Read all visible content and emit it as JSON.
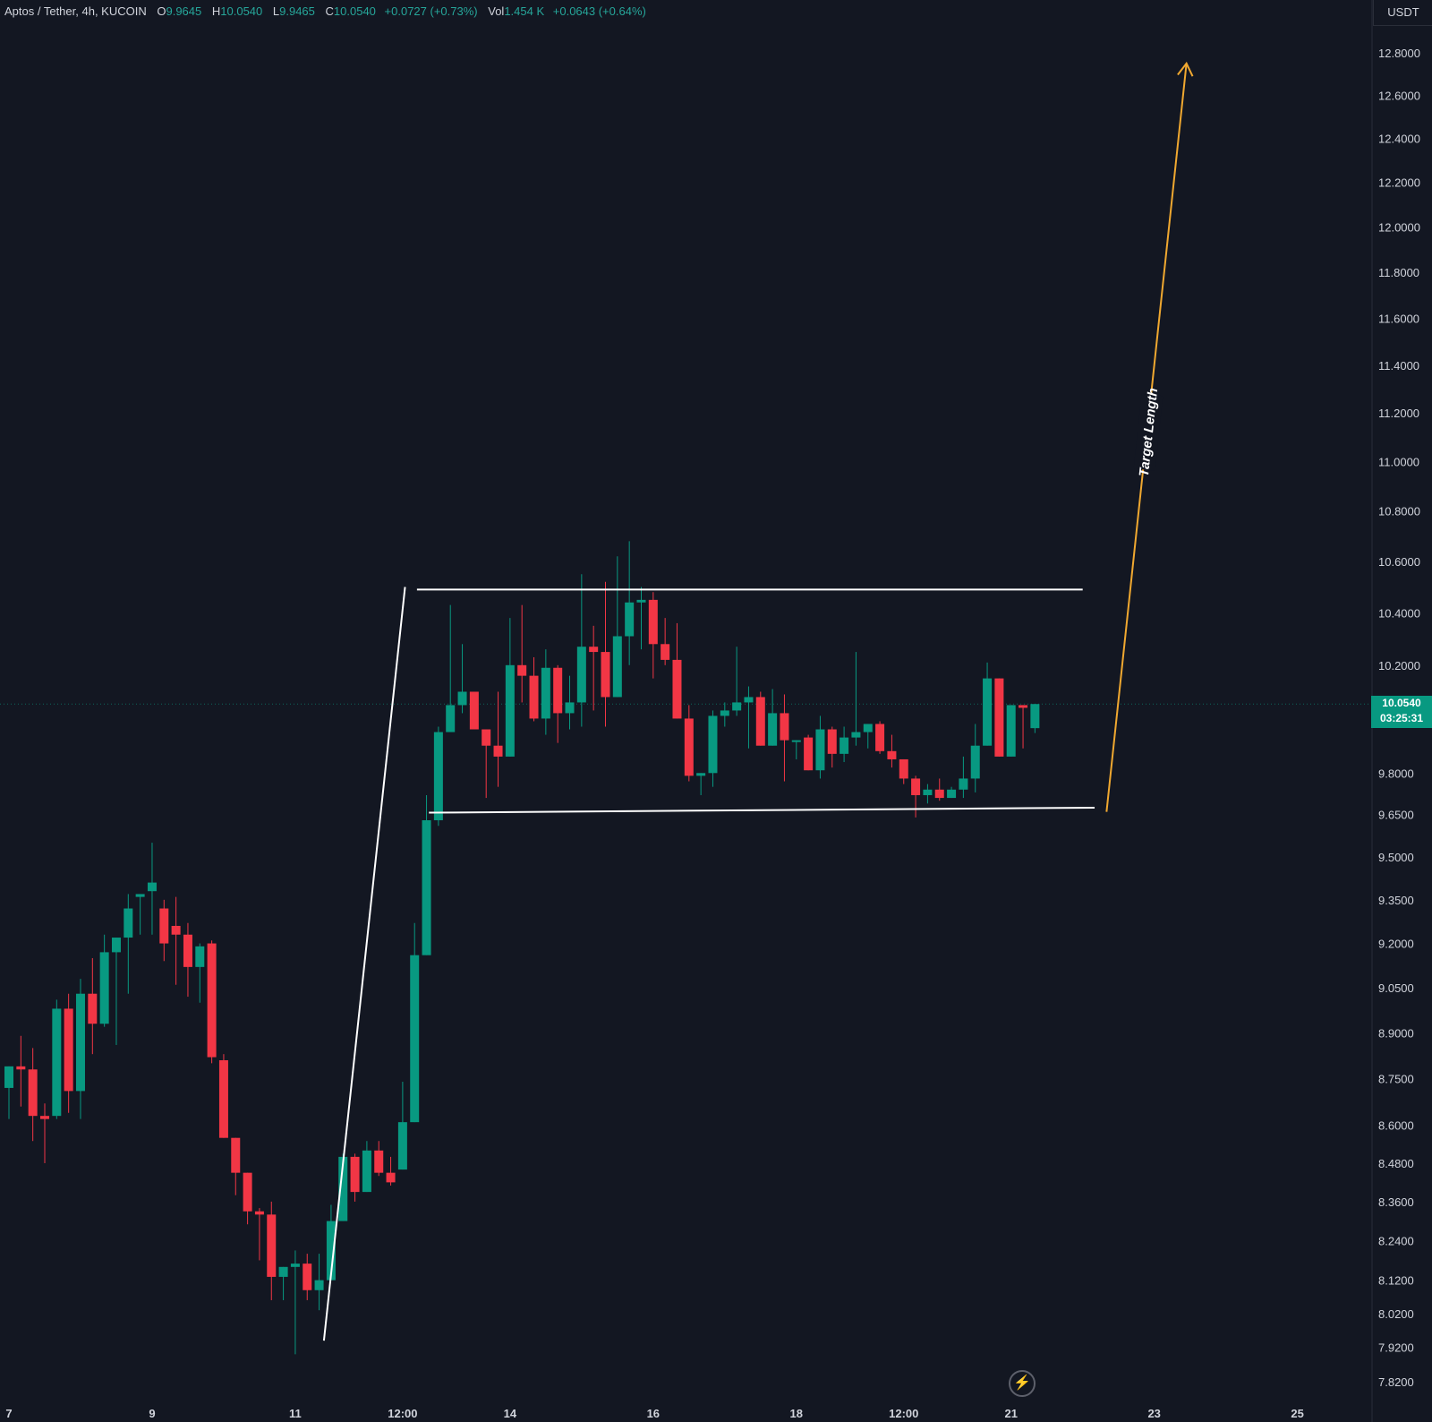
{
  "header": {
    "symbol": "Aptos / Tether, 4h, KUCOIN",
    "open_label": "O",
    "open": "9.9645",
    "high_label": "H",
    "high": "10.0540",
    "low_label": "L",
    "low": "9.9465",
    "close_label": "C",
    "close": "10.0540",
    "change": "+0.0727 (+0.73%)",
    "vol_label": "Vol",
    "vol": "1.454 K",
    "vol_change": "+0.0643 (+0.64%)"
  },
  "currency": "USDT",
  "last_price": {
    "value": "10.0540",
    "countdown": "03:25:31"
  },
  "colors": {
    "up": "#089981",
    "down": "#f23645",
    "background": "#131722",
    "text": "#d1d4dc",
    "target_arrow": "#f0a830",
    "pattern_lines": "#ffffff"
  },
  "chart_data": {
    "type": "candlestick",
    "axis_type": "log",
    "y_ticks": [
      "12.8000",
      "12.6000",
      "12.4000",
      "12.2000",
      "12.0000",
      "11.8000",
      "11.6000",
      "11.4000",
      "11.2000",
      "11.0000",
      "10.8000",
      "10.6000",
      "10.4000",
      "10.2000",
      "9.8000",
      "9.6500",
      "9.5000",
      "9.3500",
      "9.2000",
      "9.0500",
      "8.9000",
      "8.7500",
      "8.6000",
      "8.4800",
      "8.3600",
      "8.2400",
      "8.1200",
      "8.0200",
      "7.9200",
      "7.8200"
    ],
    "x_ticks": [
      {
        "label": "7",
        "bar": 0
      },
      {
        "label": "9",
        "bar": 12
      },
      {
        "label": "11",
        "bar": 24
      },
      {
        "label": "12:00",
        "bar": 33
      },
      {
        "label": "14",
        "bar": 42
      },
      {
        "label": "16",
        "bar": 54
      },
      {
        "label": "18",
        "bar": 66
      },
      {
        "label": "12:00",
        "bar": 75
      },
      {
        "label": "21",
        "bar": 84
      },
      {
        "label": "23",
        "bar": 96
      },
      {
        "label": "25",
        "bar": 108
      }
    ],
    "candles": [
      [
        8.72,
        8.79,
        8.66,
        8.62
      ],
      [
        8.79,
        8.78,
        8.89,
        8.66
      ],
      [
        8.78,
        8.63,
        8.85,
        8.55
      ],
      [
        8.63,
        8.62,
        8.67,
        8.48
      ],
      [
        8.63,
        8.98,
        9.01,
        8.62
      ],
      [
        8.98,
        8.71,
        9.03,
        8.64
      ],
      [
        8.71,
        9.03,
        9.08,
        8.62
      ],
      [
        9.03,
        8.93,
        9.15,
        8.83
      ],
      [
        8.93,
        9.17,
        9.23,
        8.92
      ],
      [
        9.17,
        9.22,
        9.2,
        8.86
      ],
      [
        9.22,
        9.32,
        9.37,
        9.03
      ],
      [
        9.36,
        9.37,
        9.32,
        9.23
      ],
      [
        9.38,
        9.41,
        9.55,
        9.23
      ],
      [
        9.32,
        9.2,
        9.35,
        9.14
      ],
      [
        9.26,
        9.23,
        9.36,
        9.06
      ],
      [
        9.23,
        9.12,
        9.27,
        9.02
      ],
      [
        9.12,
        9.19,
        9.2,
        9.0
      ],
      [
        9.2,
        8.82,
        9.21,
        8.8
      ],
      [
        8.81,
        8.56,
        8.83,
        8.56
      ],
      [
        8.56,
        8.45,
        8.52,
        8.38
      ],
      [
        8.45,
        8.33,
        8.43,
        8.29
      ],
      [
        8.33,
        8.32,
        8.34,
        8.18
      ],
      [
        8.32,
        8.13,
        8.36,
        8.06
      ],
      [
        8.13,
        8.16,
        8.16,
        8.06
      ],
      [
        8.16,
        8.17,
        8.21,
        7.9
      ],
      [
        8.17,
        8.09,
        8.2,
        8.06
      ],
      [
        8.09,
        8.12,
        8.2,
        8.03
      ],
      [
        8.12,
        8.3,
        8.35,
        8.12
      ],
      [
        8.3,
        8.5,
        8.51,
        8.3
      ],
      [
        8.5,
        8.39,
        8.51,
        8.36
      ],
      [
        8.39,
        8.52,
        8.55,
        8.39
      ],
      [
        8.52,
        8.45,
        8.55,
        8.44
      ],
      [
        8.45,
        8.42,
        8.5,
        8.41
      ],
      [
        8.46,
        8.61,
        8.74,
        8.46
      ],
      [
        8.61,
        9.16,
        9.27,
        8.61
      ],
      [
        9.16,
        9.63,
        9.72,
        9.16
      ],
      [
        9.63,
        9.95,
        9.97,
        9.61
      ],
      [
        9.95,
        10.05,
        10.43,
        9.95
      ],
      [
        10.05,
        10.1,
        10.28,
        10.02
      ],
      [
        10.1,
        9.96,
        10.08,
        9.96
      ],
      [
        9.96,
        9.9,
        9.86,
        9.71
      ],
      [
        9.9,
        9.86,
        10.1,
        9.75
      ],
      [
        9.86,
        10.2,
        10.38,
        9.9
      ],
      [
        10.2,
        10.16,
        10.43,
        10.06
      ],
      [
        10.16,
        10.0,
        10.23,
        9.99
      ],
      [
        10.0,
        10.19,
        10.26,
        9.94
      ],
      [
        10.19,
        10.02,
        10.2,
        9.91
      ],
      [
        10.02,
        10.06,
        10.16,
        9.96
      ],
      [
        10.06,
        10.27,
        10.55,
        9.97
      ],
      [
        10.27,
        10.25,
        10.35,
        10.03
      ],
      [
        10.25,
        10.08,
        10.52,
        9.97
      ],
      [
        10.08,
        10.31,
        10.62,
        10.08
      ],
      [
        10.31,
        10.44,
        10.68,
        10.2
      ],
      [
        10.44,
        10.45,
        10.5,
        10.26
      ],
      [
        10.45,
        10.28,
        10.48,
        10.15
      ],
      [
        10.28,
        10.22,
        10.38,
        10.2
      ],
      [
        10.22,
        10.0,
        10.36,
        10.0
      ],
      [
        10.0,
        9.79,
        10.05,
        9.77
      ],
      [
        9.79,
        9.8,
        9.76,
        9.72
      ],
      [
        9.8,
        10.01,
        10.03,
        9.75
      ],
      [
        10.01,
        10.03,
        10.06,
        9.97
      ],
      [
        10.03,
        10.06,
        10.27,
        10.01
      ],
      [
        10.06,
        10.08,
        10.12,
        9.89
      ],
      [
        10.08,
        9.9,
        10.1,
        9.9
      ],
      [
        9.9,
        10.02,
        10.11,
        9.92
      ],
      [
        10.02,
        9.92,
        10.09,
        9.77
      ],
      [
        9.92,
        9.92,
        9.92,
        9.85
      ],
      [
        9.93,
        9.81,
        9.94,
        9.81
      ],
      [
        9.81,
        9.96,
        10.01,
        9.78
      ],
      [
        9.96,
        9.87,
        9.97,
        9.82
      ],
      [
        9.87,
        9.93,
        9.97,
        9.84
      ],
      [
        9.93,
        9.95,
        10.25,
        9.9
      ],
      [
        9.95,
        9.98,
        9.97,
        9.89
      ],
      [
        9.98,
        9.88,
        9.99,
        9.87
      ],
      [
        9.88,
        9.85,
        9.94,
        9.82
      ],
      [
        9.85,
        9.78,
        9.85,
        9.76
      ],
      [
        9.78,
        9.72,
        9.79,
        9.64
      ],
      [
        9.72,
        9.74,
        9.76,
        9.69
      ],
      [
        9.74,
        9.71,
        9.78,
        9.7
      ],
      [
        9.71,
        9.74,
        9.75,
        9.72
      ],
      [
        9.74,
        9.78,
        9.86,
        9.71
      ],
      [
        9.78,
        9.9,
        9.98,
        9.73
      ],
      [
        9.9,
        10.15,
        10.21,
        9.9
      ],
      [
        10.15,
        9.86,
        10.12,
        9.86
      ],
      [
        9.86,
        10.05,
        10.0,
        9.86
      ],
      [
        10.05,
        10.04,
        10.01,
        9.89
      ],
      [
        9.9645,
        10.054,
        10.054,
        9.9465
      ]
    ]
  },
  "annotations": {
    "target_label": "Target Length"
  }
}
